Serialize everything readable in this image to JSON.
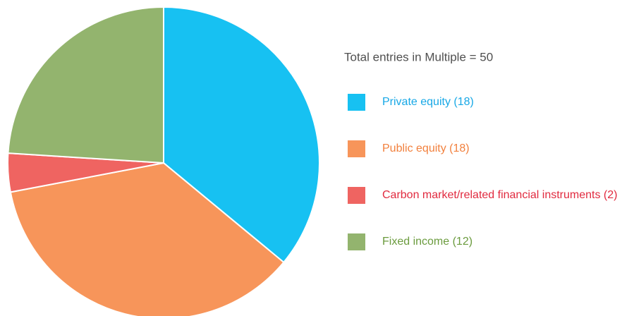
{
  "chart_data": {
    "type": "pie",
    "subtitle": "Total entries in Multiple = 50",
    "categories": [
      "Private equity (18)",
      "Public equity (18)",
      "Carbon market/related financial instruments (2)",
      "Fixed income (12)"
    ],
    "values": [
      18,
      18,
      2,
      12
    ],
    "colors": [
      "#17c1f2",
      "#f7955a",
      "#ef6461",
      "#93b46e"
    ]
  }
}
